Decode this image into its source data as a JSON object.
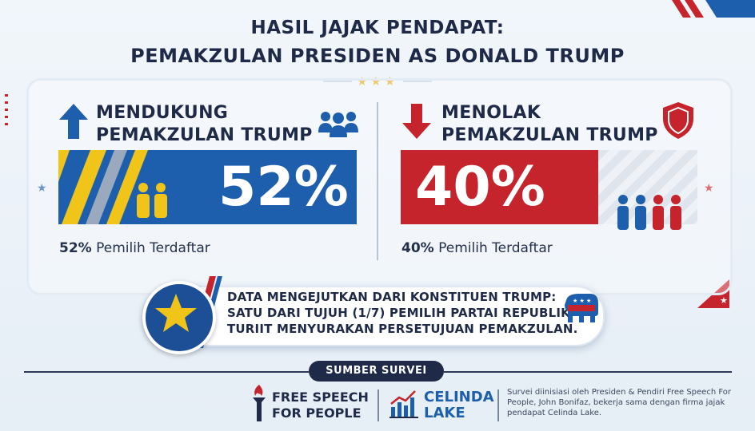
{
  "header": {
    "title_line1": "HASIL JAJAK PENDAPAT:",
    "title_line2": "PEMAKZULAN PRESIDEN AS DONALD TRUMP"
  },
  "support": {
    "heading_line1": "MENDUKUNG",
    "heading_line2": "PEMAKZULAN TRUMP",
    "percent_label": "52%",
    "percent_value": 52,
    "sub_bold": "52%",
    "sub_text": " Pemilih Terdaftar",
    "color": "#1e5fad",
    "icons": [
      "arrow-up-icon",
      "group-icon",
      "two-people-icon"
    ]
  },
  "oppose": {
    "heading_line1": "MENOLAK",
    "heading_line2": "PEMAKZULAN TRUMP",
    "percent_label": "40%",
    "percent_value": 40,
    "sub_bold": "40%",
    "sub_text": " Pemilih Terdaftar",
    "color": "#c6242d",
    "icons": [
      "arrow-down-icon",
      "shield-icon",
      "four-people-icon"
    ]
  },
  "alert": {
    "line1": "DATA MENGEJUTKAN DARI KONSTITUEN TRUMP:",
    "line2": "SATU DARI TUJUH (1/7) PEMILIH PARTAI REPUBLIK",
    "line3": "TURIIT MENYURAKAN PERSETUJUAN PEMAKZULAN.",
    "icons": [
      "star-icon",
      "republican-elephant-icon"
    ]
  },
  "source": {
    "badge": "SUMBER SURVEI",
    "org1_line1": "FREE SPEECH",
    "org1_line2": "FOR PEOPLE",
    "org2_line1": "CELINDA",
    "org2_line2": "LAKE",
    "note": "Survei diinisiasi oleh Presiden & Pendiri Free Speech For People, John Bonifaz, bekerja sama dengan firma jajak pendapat Celinda Lake."
  },
  "colors": {
    "navy": "#1e2a47",
    "blue": "#1e5fad",
    "red": "#c6242d",
    "gold": "#e0b024"
  }
}
